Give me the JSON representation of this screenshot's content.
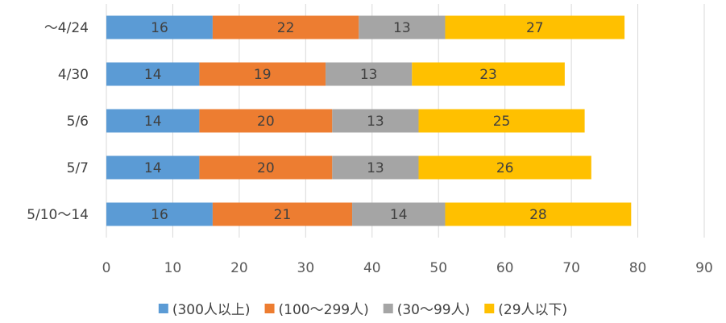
{
  "chart_data": {
    "type": "bar",
    "orientation": "horizontal",
    "stacked": true,
    "title": "",
    "xlabel": "",
    "ylabel": "",
    "categories": [
      "〜4/24",
      "4/30",
      "5/6",
      "5/7",
      "5/10〜14"
    ],
    "series": [
      {
        "name": "(300人以上)",
        "color": "#5b9bd5",
        "values": [
          16,
          14,
          14,
          14,
          16
        ]
      },
      {
        "name": "(100〜299人)",
        "color": "#ed7d31",
        "values": [
          22,
          19,
          20,
          20,
          21
        ]
      },
      {
        "name": "(30〜99人)",
        "color": "#a5a5a5",
        "values": [
          13,
          13,
          13,
          13,
          14
        ]
      },
      {
        "name": "(29人以下)",
        "color": "#ffc000",
        "values": [
          27,
          23,
          25,
          26,
          28
        ]
      }
    ],
    "xlim": [
      0,
      90
    ],
    "xticks": [
      0,
      10,
      20,
      30,
      40,
      50,
      60,
      70,
      80,
      90
    ],
    "grid": true,
    "legend_position": "bottom",
    "data_labels": true
  }
}
